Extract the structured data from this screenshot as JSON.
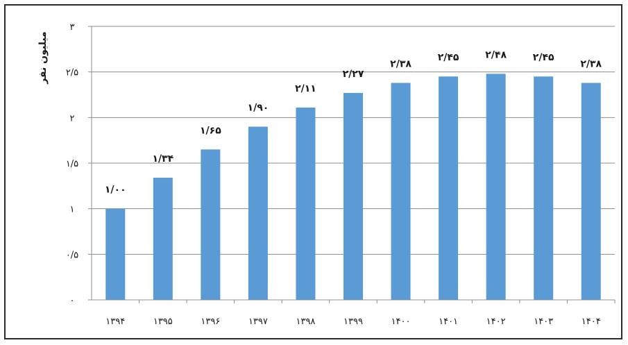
{
  "chart_data": {
    "type": "bar",
    "ylabel": "میلیون نفر",
    "ylim": [
      0,
      3
    ],
    "y_ticks": [
      {
        "value": 0,
        "label": "۰"
      },
      {
        "value": 0.5,
        "label": "۰/۵"
      },
      {
        "value": 1,
        "label": "۱"
      },
      {
        "value": 1.5,
        "label": "۱/۵"
      },
      {
        "value": 2,
        "label": "۲"
      },
      {
        "value": 2.5,
        "label": "۲/۵"
      },
      {
        "value": 3,
        "label": "۳"
      }
    ],
    "categories": [
      "۱۳۹۴",
      "۱۳۹۵",
      "۱۳۹۶",
      "۱۳۹۷",
      "۱۳۹۸",
      "۱۳۹۹",
      "۱۴۰۰",
      "۱۴۰۱",
      "۱۴۰۲",
      "۱۴۰۳",
      "۱۴۰۴"
    ],
    "values": [
      1.0,
      1.34,
      1.65,
      1.9,
      2.11,
      2.27,
      2.38,
      2.45,
      2.48,
      2.45,
      2.38
    ],
    "value_labels": [
      "۱/۰۰",
      "۱/۳۴",
      "۱/۶۵",
      "۱/۹۰",
      "۲/۱۱",
      "۲/۲۷",
      "۲/۳۸",
      "۲/۴۵",
      "۲/۴۸",
      "۲/۴۵",
      "۲/۳۸"
    ],
    "grid": true,
    "legend": "none",
    "colors": {
      "bar": "#5b9bd5",
      "grid": "#8c8c8c",
      "axis": "#8c8c8c"
    }
  }
}
